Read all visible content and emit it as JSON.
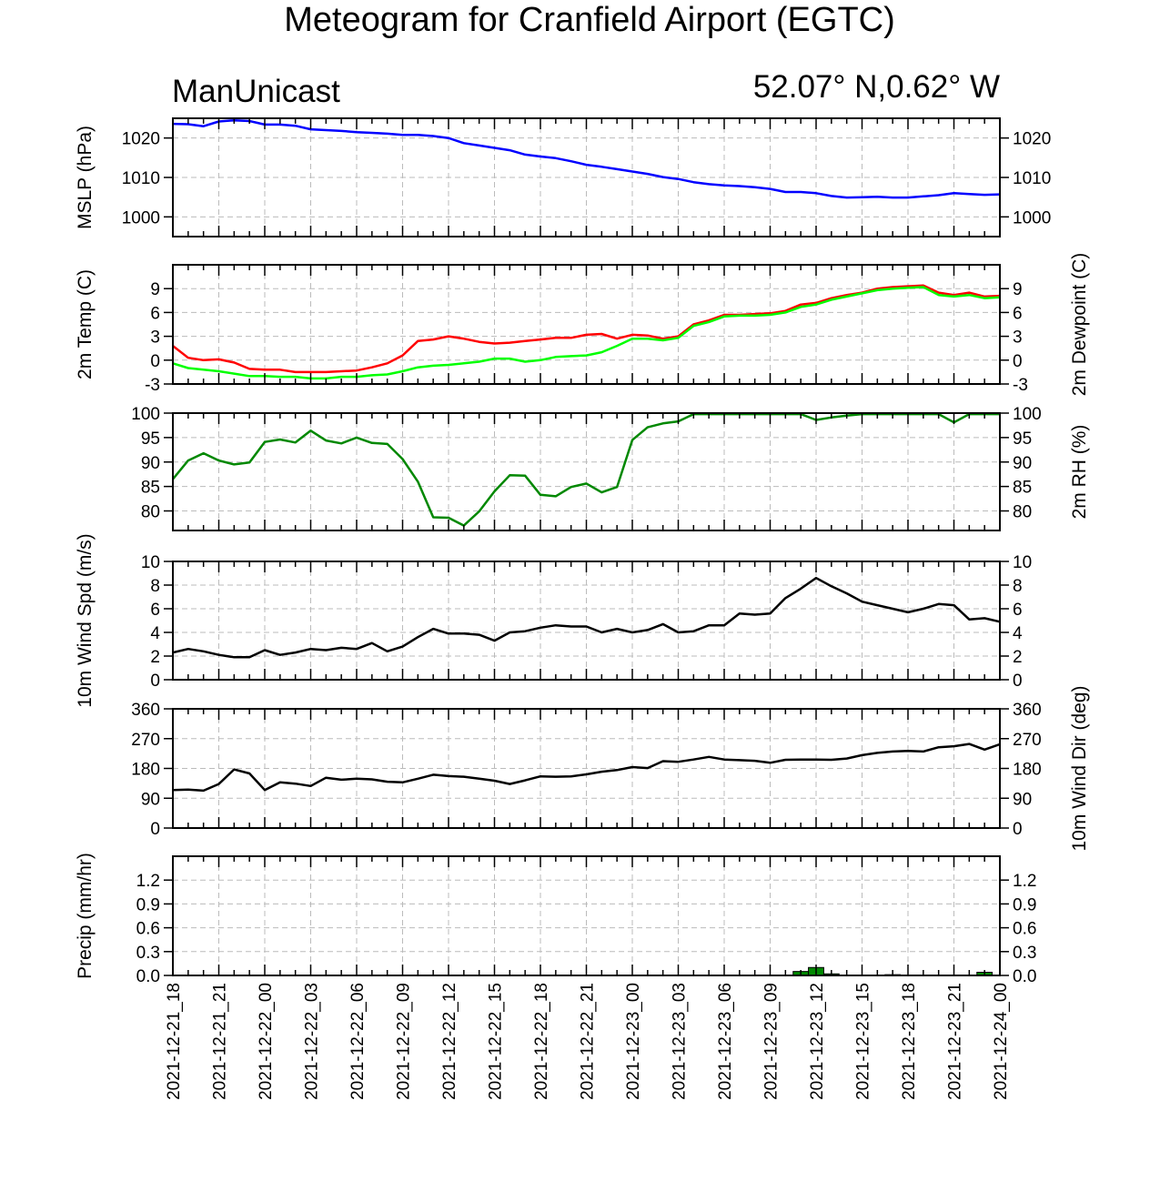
{
  "chart_data": {
    "type": "line",
    "title": "Meteogram for Cranfield Airport (EGTC)",
    "subtitle_left": "ManUnicast",
    "subtitle_right": "52.07° N,0.62° W",
    "x_tick_labels": [
      "2021-12-21_18",
      "2021-12-21_21",
      "2021-12-22_00",
      "2021-12-22_03",
      "2021-12-22_06",
      "2021-12-22_09",
      "2021-12-22_12",
      "2021-12-22_15",
      "2021-12-22_18",
      "2021-12-22_21",
      "2021-12-23_00",
      "2021-12-23_03",
      "2021-12-23_06",
      "2021-12-23_09",
      "2021-12-23_12",
      "2021-12-23_15",
      "2021-12-23_18",
      "2021-12-23_21",
      "2021-12-24_00"
    ],
    "x_range_hours": [
      0,
      54
    ],
    "grid": true,
    "panels": [
      {
        "id": "mslp",
        "ylabel": "MSLP (hPa)",
        "ylim": [
          995,
          1025
        ],
        "yticks": [
          1000,
          1010,
          1020
        ],
        "series": [
          {
            "color": "#0000ff",
            "x": [
              0,
              1,
              2,
              3,
              4,
              5,
              6,
              7,
              8,
              9,
              10,
              11,
              12,
              13,
              14,
              15,
              16,
              17,
              18,
              19,
              20,
              21,
              22,
              23,
              24,
              25,
              26,
              27,
              28,
              29,
              30,
              31,
              32,
              33,
              34,
              35,
              36,
              37,
              38,
              39,
              40,
              41,
              42,
              43,
              44,
              45,
              46,
              47,
              48,
              49,
              50,
              51,
              52,
              53,
              54
            ],
            "y": [
              1023.6,
              1023.5,
              1023,
              1024.2,
              1024.5,
              1024.3,
              1023.4,
              1023.4,
              1023.1,
              1022.2,
              1022,
              1021.8,
              1021.5,
              1021.3,
              1021.1,
              1020.8,
              1020.8,
              1020.5,
              1020,
              1018.7,
              1018.1,
              1017.5,
              1016.9,
              1015.8,
              1015.3,
              1014.9,
              1014.1,
              1013.2,
              1012.7,
              1012.1,
              1011.5,
              1010.9,
              1010.1,
              1009.6,
              1008.8,
              1008.3,
              1008,
              1007.8,
              1007.5,
              1007.1,
              1006.3,
              1006.3,
              1006,
              1005.3,
              1004.9,
              1005,
              1005.1,
              1004.9,
              1004.9,
              1005.2,
              1005.5,
              1006,
              1005.8,
              1005.6,
              1005.7
            ]
          }
        ]
      },
      {
        "id": "temp",
        "ylabel": "2m Temp (C)",
        "ylabel_right": "2m Dewpoint (C)",
        "ylim": [
          -3,
          12
        ],
        "yticks": [
          -3,
          0,
          3,
          6,
          9
        ],
        "series": [
          {
            "color": "#ff0000",
            "x": [
              0,
              1,
              2,
              3,
              4,
              5,
              6,
              7,
              8,
              9,
              10,
              11,
              12,
              13,
              14,
              15,
              16,
              17,
              18,
              19,
              20,
              21,
              22,
              23,
              24,
              25,
              26,
              27,
              28,
              29,
              30,
              31,
              32,
              33,
              34,
              35,
              36,
              37,
              38,
              39,
              40,
              41,
              42,
              43,
              44,
              45,
              46,
              47,
              48,
              49,
              50,
              51,
              52,
              53,
              54
            ],
            "y": [
              1.8,
              0.3,
              0,
              0.1,
              -0.3,
              -1.1,
              -1.2,
              -1.2,
              -1.5,
              -1.5,
              -1.5,
              -1.4,
              -1.3,
              -0.9,
              -0.4,
              0.6,
              2.4,
              2.6,
              3,
              2.7,
              2.3,
              2.1,
              2.2,
              2.4,
              2.6,
              2.8,
              2.8,
              3.2,
              3.3,
              2.7,
              3.2,
              3.1,
              2.7,
              3,
              4.5,
              5,
              5.7,
              5.7,
              5.8,
              5.9,
              6.2,
              7,
              7.2,
              7.8,
              8.2,
              8.5,
              9,
              9.2,
              9.3,
              9.4,
              8.5,
              8.2,
              8.5,
              8,
              8.1
            ]
          },
          {
            "color": "#00ff00",
            "x": [
              0,
              1,
              2,
              3,
              4,
              5,
              6,
              7,
              8,
              9,
              10,
              11,
              12,
              13,
              14,
              15,
              16,
              17,
              18,
              19,
              20,
              21,
              22,
              23,
              24,
              25,
              26,
              27,
              28,
              29,
              30,
              31,
              32,
              33,
              34,
              35,
              36,
              37,
              38,
              39,
              40,
              41,
              42,
              43,
              44,
              45,
              46,
              47,
              48,
              49,
              50,
              51,
              52,
              53,
              54
            ],
            "y": [
              -0.4,
              -1,
              -1.2,
              -1.4,
              -1.7,
              -2,
              -2,
              -2.1,
              -2.1,
              -2.3,
              -2.3,
              -2.1,
              -2.1,
              -1.9,
              -1.8,
              -1.4,
              -0.9,
              -0.7,
              -0.6,
              -0.4,
              -0.2,
              0.2,
              0.2,
              -0.2,
              0,
              0.4,
              0.5,
              0.6,
              1,
              1.8,
              2.7,
              2.7,
              2.5,
              2.8,
              4.3,
              4.8,
              5.5,
              5.6,
              5.6,
              5.7,
              6,
              6.7,
              7,
              7.6,
              8,
              8.4,
              8.8,
              9,
              9.1,
              9.2,
              8.2,
              8,
              8.2,
              7.8,
              7.9
            ]
          }
        ]
      },
      {
        "id": "rh",
        "ylabel_right": "2m RH (%)",
        "ylim": [
          76,
          100
        ],
        "yticks": [
          80,
          85,
          90,
          95,
          100
        ],
        "series": [
          {
            "color": "#008800",
            "x": [
              0,
              1,
              2,
              3,
              4,
              5,
              6,
              7,
              8,
              9,
              10,
              11,
              12,
              13,
              14,
              15,
              16,
              17,
              18,
              19,
              20,
              21,
              22,
              23,
              24,
              25,
              26,
              27,
              28,
              29,
              30,
              31,
              32,
              33,
              34,
              35,
              36,
              37,
              38,
              39,
              40,
              41,
              42,
              43,
              44,
              45,
              46,
              47,
              48,
              49,
              50,
              51,
              52,
              53,
              54
            ],
            "y": [
              86.5,
              90.3,
              91.8,
              90.3,
              89.5,
              89.9,
              94.1,
              94.6,
              94,
              96.4,
              94.4,
              93.8,
              95,
              93.9,
              93.7,
              90.6,
              86,
              78.7,
              78.6,
              77,
              79.9,
              84,
              87.3,
              87.2,
              83.3,
              83,
              84.9,
              85.6,
              83.8,
              84.9,
              94.5,
              97.1,
              97.9,
              98.3,
              99.8,
              99.8,
              99.8,
              99.8,
              99.8,
              99.8,
              99.8,
              99.8,
              98.6,
              99.1,
              99.5,
              99.8,
              99.8,
              99.8,
              99.8,
              99.8,
              99.8,
              98.1,
              99.8,
              99.8,
              99.8
            ]
          }
        ]
      },
      {
        "id": "wspd",
        "ylabel": "10m Wind Spd (m/s)",
        "ylim": [
          0,
          10
        ],
        "yticks": [
          0,
          2,
          4,
          6,
          8,
          10
        ],
        "series": [
          {
            "color": "#000000",
            "x": [
              0,
              1,
              2,
              3,
              4,
              5,
              6,
              7,
              8,
              9,
              10,
              11,
              12,
              13,
              14,
              15,
              16,
              17,
              18,
              19,
              20,
              21,
              22,
              23,
              24,
              25,
              26,
              27,
              28,
              29,
              30,
              31,
              32,
              33,
              34,
              35,
              36,
              37,
              38,
              39,
              40,
              41,
              42,
              43,
              44,
              45,
              46,
              47,
              48,
              49,
              50,
              51,
              52,
              53,
              54
            ],
            "y": [
              2.3,
              2.6,
              2.4,
              2.1,
              1.9,
              1.9,
              2.5,
              2.1,
              2.3,
              2.6,
              2.5,
              2.7,
              2.6,
              3.1,
              2.4,
              2.8,
              3.6,
              4.3,
              3.9,
              3.9,
              3.8,
              3.3,
              4,
              4.1,
              4.4,
              4.6,
              4.5,
              4.5,
              4,
              4.3,
              4,
              4.2,
              4.7,
              4,
              4.1,
              4.6,
              4.6,
              5.6,
              5.5,
              5.6,
              6.9,
              7.7,
              8.6,
              7.9,
              7.3,
              6.6,
              6.3,
              6,
              5.7,
              6,
              6.4,
              6.3,
              5.1,
              5.2,
              4.9
            ]
          }
        ]
      },
      {
        "id": "wdir",
        "ylabel_right": "10m Wind Dir (deg)",
        "ylim": [
          0,
          360
        ],
        "yticks": [
          0,
          90,
          180,
          270,
          360
        ],
        "series": [
          {
            "color": "#000000",
            "x": [
              0,
              1,
              2,
              3,
              4,
              5,
              6,
              7,
              8,
              9,
              10,
              11,
              12,
              13,
              14,
              15,
              16,
              17,
              18,
              19,
              20,
              21,
              22,
              23,
              24,
              25,
              26,
              27,
              28,
              29,
              30,
              31,
              32,
              33,
              34,
              35,
              36,
              37,
              38,
              39,
              40,
              41,
              42,
              43,
              44,
              45,
              46,
              47,
              48,
              49,
              50,
              51,
              52,
              53,
              54
            ],
            "y": [
              115,
              116,
              113,
              133,
              177,
              165,
              115,
              138,
              134,
              127,
              152,
              146,
              149,
              147,
              140,
              138,
              149,
              161,
              157,
              155,
              149,
              143,
              133,
              144,
              156,
              155,
              156,
              162,
              170,
              175,
              184,
              181,
              202,
              200,
              207,
              215,
              207,
              205,
              203,
              197,
              206,
              207,
              207,
              206,
              210,
              220,
              227,
              231,
              233,
              231,
              244,
              247,
              254,
              237,
              253
            ]
          }
        ]
      },
      {
        "id": "precip",
        "ylabel": "Precip (mm/hr)",
        "type": "bar",
        "ylim": [
          0,
          1.5
        ],
        "yticks": [
          0.0,
          0.3,
          0.6,
          0.9,
          1.2
        ],
        "ytick_labels": [
          "0.0",
          "0.3",
          "0.6",
          "0.9",
          "1.2"
        ],
        "series": [
          {
            "color": "#008800",
            "x": [
              41,
              42,
              43,
              47,
              53
            ],
            "y": [
              0.05,
              0.1,
              0.02,
              0.01,
              0.04
            ]
          }
        ]
      }
    ]
  }
}
